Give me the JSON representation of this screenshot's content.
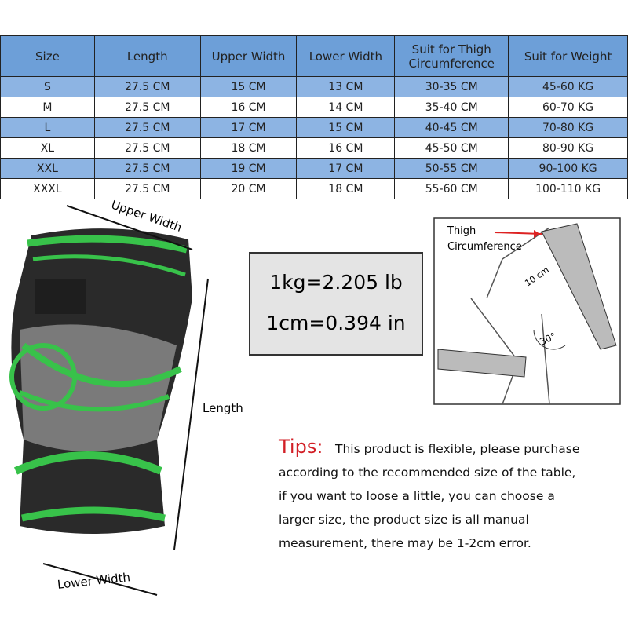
{
  "table": {
    "header": [
      "Size",
      "Length",
      "Upper Width",
      "Lower Width",
      "Suit for Thigh Circumference",
      "Suit for Weight"
    ],
    "rows": [
      [
        "S",
        "27.5 CM",
        "15 CM",
        "13 CM",
        "30-35 CM",
        "45-60 KG"
      ],
      [
        "M",
        "27.5 CM",
        "16 CM",
        "14 CM",
        "35-40 CM",
        "60-70 KG"
      ],
      [
        "L",
        "27.5 CM",
        "17 CM",
        "15 CM",
        "40-45 CM",
        "70-80 KG"
      ],
      [
        "XL",
        "27.5 CM",
        "18 CM",
        "16 CM",
        "45-50 CM",
        "80-90 KG"
      ],
      [
        "XXL",
        "27.5 CM",
        "19 CM",
        "17 CM",
        "50-55 CM",
        "90-100 KG"
      ],
      [
        "XXXL",
        "27.5 CM",
        "20 CM",
        "18 CM",
        "55-60 CM",
        "100-110 KG"
      ]
    ]
  },
  "knee": {
    "upper_width": "Upper Width",
    "length": "Length",
    "lower_width": "Lower Width"
  },
  "conversions": [
    "1kg=2.205 lb",
    "1cm=0.394 in"
  ],
  "diagram": {
    "label_lines": [
      "Thigh",
      "Circumference"
    ],
    "measure": "10 cm",
    "angle": "30°"
  },
  "tips": {
    "label": "Tips:",
    "lines": [
      "This product is flexible, please purchase",
      "according to the recommended size of the table,",
      "if you want to loose a little, you can choose a",
      "larger size, the product size is all manual",
      "measurement, there may be 1-2cm error."
    ]
  }
}
